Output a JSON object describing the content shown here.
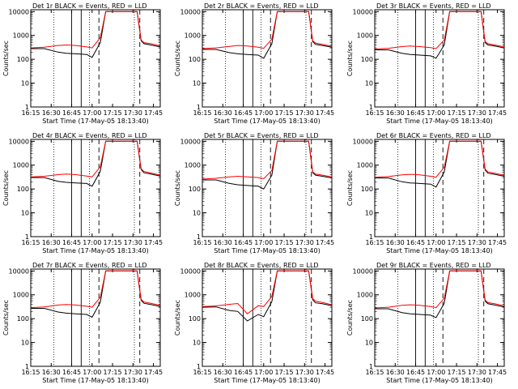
{
  "figure": {
    "start_time_label": "Start Time (17-May-05 18:13:40)",
    "ylabel": "Counts/sec",
    "x_ticks": [
      "16:15",
      "16:30",
      "16:45",
      "17:00",
      "17:15",
      "17:30",
      "17:45"
    ],
    "y_ticks": [
      "1",
      "10",
      "100",
      "1000",
      "10000"
    ]
  },
  "chart_data": [
    {
      "type": "line",
      "title": "Det 1r BLACK = Events, RED = LLD",
      "xlabel": "Start Time (17-May-05 18:13:40)",
      "ylabel": "Counts/sec",
      "y_scale": "log",
      "ylim": [
        1,
        12000
      ],
      "x_range": [
        "16:15",
        "17:50"
      ],
      "series": [
        {
          "name": "BLACK = Events",
          "color": "#000000",
          "x": [
            "16:15",
            "16:25",
            "16:35",
            "16:41",
            "16:48",
            "16:56",
            "17:00",
            "17:06",
            "17:10",
            "17:12",
            "17:16",
            "17:20",
            "17:25",
            "17:33",
            "17:36",
            "17:38",
            "17:43",
            "17:50"
          ],
          "values": [
            280,
            280,
            200,
            180,
            170,
            160,
            120,
            500,
            10000,
            10000,
            10000,
            10000,
            10000,
            10000,
            600,
            450,
            400,
            330
          ]
        },
        {
          "name": "RED = LLD",
          "color": "#ff0000",
          "x": [
            "16:15",
            "16:25",
            "16:35",
            "16:41",
            "16:48",
            "16:56",
            "17:00",
            "17:06",
            "17:10",
            "17:12",
            "17:16",
            "17:20",
            "17:25",
            "17:33",
            "17:36",
            "17:38",
            "17:43",
            "17:50"
          ],
          "values": [
            300,
            320,
            380,
            400,
            380,
            330,
            300,
            800,
            10000,
            10000,
            10000,
            10000,
            10000,
            10000,
            650,
            500,
            450,
            360
          ]
        }
      ]
    },
    {
      "type": "line",
      "title": "Det 2r BLACK = Events, RED = LLD",
      "xlabel": "Start Time (17-May-05 18:13:40)",
      "ylabel": "Counts/sec",
      "y_scale": "log",
      "ylim": [
        1,
        12000
      ],
      "x_range": [
        "16:15",
        "17:50"
      ],
      "series": [
        {
          "name": "BLACK = Events",
          "color": "#000000",
          "x": [
            "16:15",
            "16:25",
            "16:35",
            "16:41",
            "16:48",
            "16:56",
            "17:00",
            "17:06",
            "17:10",
            "17:12",
            "17:16",
            "17:20",
            "17:25",
            "17:33",
            "17:36",
            "17:38",
            "17:43",
            "17:50"
          ],
          "values": [
            260,
            260,
            190,
            170,
            160,
            150,
            110,
            450,
            10000,
            10000,
            10000,
            10000,
            10000,
            10000,
            550,
            420,
            380,
            320
          ]
        },
        {
          "name": "RED = LLD",
          "color": "#ff0000",
          "x": [
            "16:15",
            "16:25",
            "16:35",
            "16:41",
            "16:48",
            "16:56",
            "17:00",
            "17:06",
            "17:10",
            "17:12",
            "17:16",
            "17:20",
            "17:25",
            "17:33",
            "17:36",
            "17:38",
            "17:43",
            "17:50"
          ],
          "values": [
            280,
            300,
            350,
            380,
            360,
            320,
            290,
            700,
            10000,
            10000,
            10000,
            10000,
            10000,
            10000,
            600,
            480,
            420,
            350
          ]
        }
      ]
    },
    {
      "type": "line",
      "title": "Det 3r BLACK = Events, RED = LLD",
      "xlabel": "Start Time (17-May-05 18:13:40)",
      "ylabel": "Counts/sec",
      "y_scale": "log",
      "ylim": [
        1,
        12000
      ],
      "x_range": [
        "16:15",
        "17:50"
      ],
      "series": [
        {
          "name": "BLACK = Events",
          "color": "#000000",
          "x": [
            "16:15",
            "16:25",
            "16:35",
            "16:41",
            "16:48",
            "16:56",
            "17:00",
            "17:06",
            "17:10",
            "17:12",
            "17:16",
            "17:20",
            "17:25",
            "17:33",
            "17:36",
            "17:38",
            "17:43",
            "17:50"
          ],
          "values": [
            250,
            250,
            180,
            160,
            150,
            140,
            110,
            400,
            10000,
            10000,
            10000,
            10000,
            10000,
            10000,
            500,
            400,
            360,
            300
          ]
        },
        {
          "name": "RED = LLD",
          "color": "#ff0000",
          "x": [
            "16:15",
            "16:25",
            "16:35",
            "16:41",
            "16:48",
            "16:56",
            "17:00",
            "17:06",
            "17:10",
            "17:12",
            "17:16",
            "17:20",
            "17:25",
            "17:33",
            "17:36",
            "17:38",
            "17:43",
            "17:50"
          ],
          "values": [
            270,
            290,
            340,
            360,
            340,
            310,
            280,
            650,
            10000,
            10000,
            10000,
            10000,
            10000,
            10000,
            550,
            450,
            400,
            330
          ]
        }
      ]
    },
    {
      "type": "line",
      "title": "Det 4r BLACK = Events, RED = LLD",
      "xlabel": "Start Time (17-May-05 18:13:40)",
      "ylabel": "Counts/sec",
      "y_scale": "log",
      "ylim": [
        1,
        12000
      ],
      "x_range": [
        "16:15",
        "17:50"
      ],
      "series": [
        {
          "name": "BLACK = Events",
          "color": "#000000",
          "x": [
            "16:15",
            "16:25",
            "16:35",
            "16:41",
            "16:48",
            "16:56",
            "17:00",
            "17:06",
            "17:10",
            "17:12",
            "17:16",
            "17:20",
            "17:25",
            "17:33",
            "17:36",
            "17:38",
            "17:43",
            "17:50"
          ],
          "values": [
            300,
            300,
            210,
            190,
            180,
            170,
            130,
            550,
            10000,
            10000,
            10000,
            10000,
            10000,
            10000,
            650,
            480,
            420,
            350
          ]
        },
        {
          "name": "RED = LLD",
          "color": "#ff0000",
          "x": [
            "16:15",
            "16:25",
            "16:35",
            "16:41",
            "16:48",
            "16:56",
            "17:00",
            "17:06",
            "17:10",
            "17:12",
            "17:16",
            "17:20",
            "17:25",
            "17:33",
            "17:36",
            "17:38",
            "17:43",
            "17:50"
          ],
          "values": [
            320,
            340,
            400,
            420,
            400,
            350,
            320,
            850,
            10000,
            10000,
            10000,
            10000,
            10000,
            10000,
            700,
            540,
            470,
            380
          ]
        }
      ]
    },
    {
      "type": "line",
      "title": "Det 5r BLACK = Events, RED = LLD",
      "xlabel": "Start Time (17-May-05 18:13:40)",
      "ylabel": "Counts/sec",
      "y_scale": "log",
      "ylim": [
        1,
        12000
      ],
      "x_range": [
        "16:15",
        "17:50"
      ],
      "series": [
        {
          "name": "BLACK = Events",
          "color": "#000000",
          "x": [
            "16:15",
            "16:25",
            "16:35",
            "16:41",
            "16:48",
            "16:56",
            "17:00",
            "17:06",
            "17:10",
            "17:12",
            "17:16",
            "17:20",
            "17:25",
            "17:33",
            "17:36",
            "17:38",
            "17:43",
            "17:50"
          ],
          "values": [
            240,
            240,
            170,
            150,
            140,
            130,
            100,
            380,
            10000,
            10000,
            10000,
            10000,
            10000,
            10000,
            480,
            380,
            340,
            290
          ]
        },
        {
          "name": "RED = LLD",
          "color": "#ff0000",
          "x": [
            "16:15",
            "16:25",
            "16:35",
            "16:41",
            "16:48",
            "16:56",
            "17:00",
            "17:06",
            "17:10",
            "17:12",
            "17:16",
            "17:20",
            "17:25",
            "17:33",
            "17:36",
            "17:38",
            "17:43",
            "17:50"
          ],
          "values": [
            260,
            280,
            320,
            340,
            320,
            300,
            270,
            600,
            10000,
            10000,
            10000,
            10000,
            10000,
            10000,
            520,
            420,
            380,
            320
          ]
        }
      ]
    },
    {
      "type": "line",
      "title": "Det 6r BLACK = Events, RED = LLD",
      "xlabel": "Start Time (17-May-05 18:13:40)",
      "ylabel": "Counts/sec",
      "y_scale": "log",
      "ylim": [
        1,
        12000
      ],
      "x_range": [
        "16:15",
        "17:50"
      ],
      "series": [
        {
          "name": "BLACK = Events",
          "color": "#000000",
          "x": [
            "16:15",
            "16:25",
            "16:35",
            "16:41",
            "16:48",
            "16:56",
            "17:00",
            "17:06",
            "17:10",
            "17:12",
            "17:16",
            "17:20",
            "17:25",
            "17:33",
            "17:36",
            "17:38",
            "17:43",
            "17:50"
          ],
          "values": [
            290,
            290,
            200,
            180,
            170,
            160,
            120,
            520,
            10000,
            10000,
            10000,
            10000,
            10000,
            10000,
            620,
            460,
            410,
            340
          ]
        },
        {
          "name": "RED = LLD",
          "color": "#ff0000",
          "x": [
            "16:15",
            "16:25",
            "16:35",
            "16:41",
            "16:48",
            "16:56",
            "17:00",
            "17:06",
            "17:10",
            "17:12",
            "17:16",
            "17:20",
            "17:25",
            "17:33",
            "17:36",
            "17:38",
            "17:43",
            "17:50"
          ],
          "values": [
            310,
            330,
            390,
            410,
            390,
            340,
            310,
            820,
            10000,
            10000,
            10000,
            10000,
            10000,
            10000,
            680,
            520,
            460,
            370
          ]
        }
      ]
    },
    {
      "type": "line",
      "title": "Det 7r BLACK = Events, RED = LLD",
      "xlabel": "Start Time (17-May-05 18:13:40)",
      "ylabel": "Counts/sec",
      "y_scale": "log",
      "ylim": [
        1,
        12000
      ],
      "x_range": [
        "16:15",
        "17:50"
      ],
      "series": [
        {
          "name": "BLACK = Events",
          "color": "#000000",
          "x": [
            "16:15",
            "16:25",
            "16:35",
            "16:41",
            "16:48",
            "16:56",
            "17:00",
            "17:06",
            "17:10",
            "17:12",
            "17:16",
            "17:20",
            "17:25",
            "17:33",
            "17:36",
            "17:38",
            "17:43",
            "17:50"
          ],
          "values": [
            270,
            270,
            190,
            170,
            160,
            150,
            115,
            480,
            10000,
            10000,
            10000,
            10000,
            10000,
            10000,
            580,
            440,
            390,
            320
          ]
        },
        {
          "name": "RED = LLD",
          "color": "#ff0000",
          "x": [
            "16:15",
            "16:25",
            "16:35",
            "16:41",
            "16:48",
            "16:56",
            "17:00",
            "17:06",
            "17:10",
            "17:12",
            "17:16",
            "17:20",
            "17:25",
            "17:33",
            "17:36",
            "17:38",
            "17:43",
            "17:50"
          ],
          "values": [
            290,
            310,
            370,
            390,
            370,
            330,
            300,
            780,
            10000,
            10000,
            10000,
            10000,
            10000,
            10000,
            640,
            500,
            440,
            360
          ]
        }
      ]
    },
    {
      "type": "line",
      "title": "Det 8r BLACK = Events, RED = LLD",
      "xlabel": "Start Time (17-May-05 18:13:40)",
      "ylabel": "Counts/sec",
      "y_scale": "log",
      "ylim": [
        1,
        12000
      ],
      "x_range": [
        "16:15",
        "17:50"
      ],
      "series": [
        {
          "name": "BLACK = Events",
          "color": "#000000",
          "x": [
            "16:15",
            "16:25",
            "16:35",
            "16:41",
            "16:48",
            "16:56",
            "17:00",
            "17:06",
            "17:10",
            "17:12",
            "17:16",
            "17:20",
            "17:25",
            "17:33",
            "17:36",
            "17:38",
            "17:43",
            "17:50"
          ],
          "values": [
            300,
            310,
            220,
            200,
            80,
            150,
            120,
            520,
            10000,
            10000,
            10000,
            10000,
            10000,
            10000,
            620,
            460,
            420,
            350
          ]
        },
        {
          "name": "RED = LLD",
          "color": "#ff0000",
          "x": [
            "16:15",
            "16:25",
            "16:35",
            "16:41",
            "16:48",
            "16:56",
            "17:00",
            "17:06",
            "17:10",
            "17:12",
            "17:16",
            "17:20",
            "17:25",
            "17:33",
            "17:36",
            "17:38",
            "17:43",
            "17:50"
          ],
          "values": [
            320,
            340,
            400,
            430,
            160,
            350,
            320,
            860,
            10000,
            10000,
            10000,
            10000,
            10000,
            10000,
            700,
            540,
            480,
            380
          ]
        }
      ]
    },
    {
      "type": "line",
      "title": "Det 9r BLACK = Events, RED = LLD",
      "xlabel": "Start Time (17-May-05 18:13:40)",
      "ylabel": "Counts/sec",
      "y_scale": "log",
      "ylim": [
        1,
        12000
      ],
      "x_range": [
        "16:15",
        "17:50"
      ],
      "series": [
        {
          "name": "BLACK = Events",
          "color": "#000000",
          "x": [
            "16:15",
            "16:25",
            "16:35",
            "16:41",
            "16:48",
            "16:56",
            "17:00",
            "17:06",
            "17:10",
            "17:12",
            "17:16",
            "17:20",
            "17:25",
            "17:33",
            "17:36",
            "17:38",
            "17:43",
            "17:50"
          ],
          "values": [
            260,
            260,
            180,
            160,
            150,
            140,
            110,
            440,
            10000,
            10000,
            10000,
            10000,
            10000,
            10000,
            540,
            420,
            370,
            310
          ]
        },
        {
          "name": "RED = LLD",
          "color": "#ff0000",
          "x": [
            "16:15",
            "16:25",
            "16:35",
            "16:41",
            "16:48",
            "16:56",
            "17:00",
            "17:06",
            "17:10",
            "17:12",
            "17:16",
            "17:20",
            "17:25",
            "17:33",
            "17:36",
            "17:38",
            "17:43",
            "17:50"
          ],
          "values": [
            280,
            300,
            360,
            380,
            360,
            320,
            290,
            720,
            10000,
            10000,
            10000,
            10000,
            10000,
            10000,
            600,
            470,
            420,
            340
          ]
        }
      ]
    }
  ],
  "markers": {
    "dotted_times": [
      "16:32",
      "16:58",
      "17:31"
    ],
    "dashed_times": [
      "17:05",
      "17:35"
    ],
    "solid_times": [
      "16:45",
      "16:52"
    ]
  }
}
